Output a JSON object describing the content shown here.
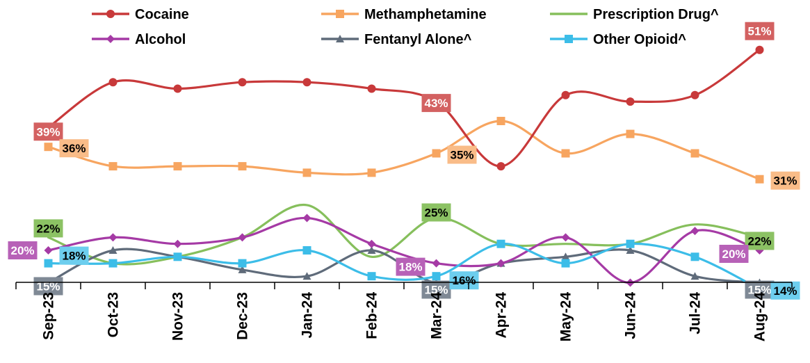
{
  "chart_data": {
    "type": "line",
    "categories": [
      "Sep-23",
      "Oct-23",
      "Nov-23",
      "Dec-23",
      "Jan-24",
      "Feb-24",
      "Mar-24",
      "Apr-24",
      "May-24",
      "Jun-24",
      "Jul-24",
      "Aug-24"
    ],
    "series": [
      {
        "name": "Cocaine",
        "color": "#c8393a",
        "marker": "circle",
        "values": [
          39,
          46,
          45,
          46,
          46,
          45,
          43,
          33,
          44,
          43,
          44,
          51
        ],
        "labels": [
          {
            "index": 0,
            "text": "39%",
            "style": "filled"
          },
          {
            "index": 6,
            "text": "43%",
            "style": "filled"
          },
          {
            "index": 11,
            "text": "51%",
            "style": "filled"
          }
        ]
      },
      {
        "name": "Methamphetamine",
        "color": "#f7a560",
        "marker": "square",
        "values": [
          36,
          33,
          33,
          33,
          32,
          32,
          35,
          40,
          35,
          38,
          35,
          31
        ],
        "labels": [
          {
            "index": 0,
            "text": "36%",
            "style": "light"
          },
          {
            "index": 6,
            "text": "35%",
            "style": "light"
          },
          {
            "index": 11,
            "text": "31%",
            "style": "light"
          }
        ]
      },
      {
        "name": "Prescription Drug^",
        "color": "#86bf5c",
        "marker": "none",
        "values": [
          22,
          18,
          19,
          22,
          27,
          19,
          25,
          21,
          21,
          21,
          24,
          22
        ],
        "labels": [
          {
            "index": 0,
            "text": "22%",
            "style": "green"
          },
          {
            "index": 6,
            "text": "25%",
            "style": "green"
          },
          {
            "index": 11,
            "text": "22%",
            "style": "green"
          }
        ]
      },
      {
        "name": "Alcohol",
        "color": "#a53aa5",
        "marker": "diamond",
        "values": [
          20,
          22,
          21,
          22,
          25,
          21,
          18,
          18,
          22,
          15,
          23,
          20
        ],
        "labels": [
          {
            "index": 0,
            "text": "20%",
            "style": "filled"
          },
          {
            "index": 6,
            "text": "18%",
            "style": "filled"
          },
          {
            "index": 11,
            "text": "20%",
            "style": "filled"
          }
        ]
      },
      {
        "name": "Fentanyl Alone^",
        "color": "#5f6b7a",
        "marker": "triangle",
        "values": [
          15,
          20,
          19,
          17,
          16,
          20,
          15,
          18,
          19,
          20,
          16,
          15
        ],
        "labels": [
          {
            "index": 0,
            "text": "15%",
            "style": "filled"
          },
          {
            "index": 6,
            "text": "15%",
            "style": "filled"
          },
          {
            "index": 11,
            "text": "15%",
            "style": "filled"
          }
        ]
      },
      {
        "name": "Other Opioid^",
        "color": "#3cbde8",
        "marker": "square",
        "values": [
          18,
          18,
          19,
          18,
          20,
          16,
          16,
          21,
          18,
          21,
          19,
          14
        ],
        "labels": [
          {
            "index": 0,
            "text": "18%",
            "style": "light"
          },
          {
            "index": 6,
            "text": "16%",
            "style": "light"
          },
          {
            "index": 11,
            "text": "14%",
            "style": "light"
          }
        ]
      }
    ],
    "ylim": [
      0,
      55
    ],
    "grid": false,
    "legend_position": "top"
  }
}
